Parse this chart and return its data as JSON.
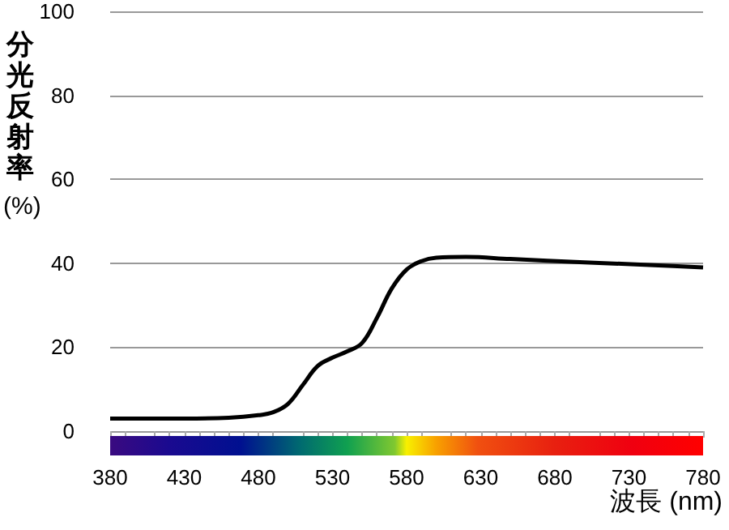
{
  "chart_data": {
    "type": "line",
    "xlabel": "波長 (nm)",
    "ylabel": "分光反射率(%)",
    "x": [
      380,
      430,
      460,
      480,
      490,
      500,
      510,
      520,
      530,
      540,
      550,
      560,
      570,
      580,
      590,
      600,
      620,
      650,
      700,
      750,
      780
    ],
    "series": [
      {
        "color": "#000000",
        "values": [
          3,
          3,
          3.2,
          3.8,
          4.5,
          6.5,
          11,
          15.5,
          17.5,
          19,
          21,
          27,
          34,
          38.5,
          40.5,
          41.3,
          41.5,
          41,
          40.2,
          39.5,
          39
        ]
      }
    ],
    "xlim": [
      380,
      780
    ],
    "xticks": [
      380,
      430,
      480,
      530,
      580,
      630,
      680,
      730,
      780
    ],
    "ylim": [
      0,
      100
    ],
    "yticks": [
      0,
      20,
      40,
      60,
      80,
      100
    ],
    "grid": "y",
    "marker": "none",
    "line_style": "solid"
  }
}
